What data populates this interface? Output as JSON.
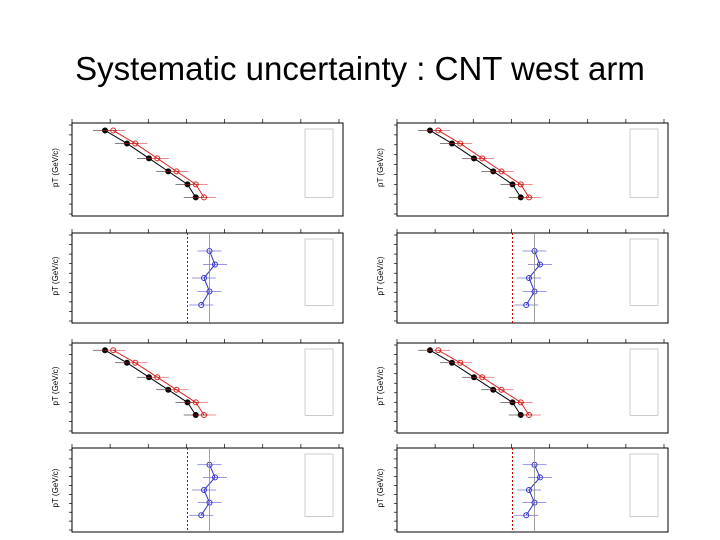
{
  "slide": {
    "title": "Systematic uncertainty : CNT west arm",
    "panels": [
      {
        "x_label": "pT (GeV/c)"
      },
      {
        "x_label": "pT (GeV/c)"
      },
      {
        "x_label": "pT (GeV/c)"
      },
      {
        "x_label": "pT (GeV/c)"
      },
      {
        "x_label": "pT (GeV/c)"
      },
      {
        "x_label": "pT (GeV/c)"
      },
      {
        "x_label": "pT (GeV/c)"
      },
      {
        "x_label": "pT (GeV/c)"
      }
    ]
  }
}
